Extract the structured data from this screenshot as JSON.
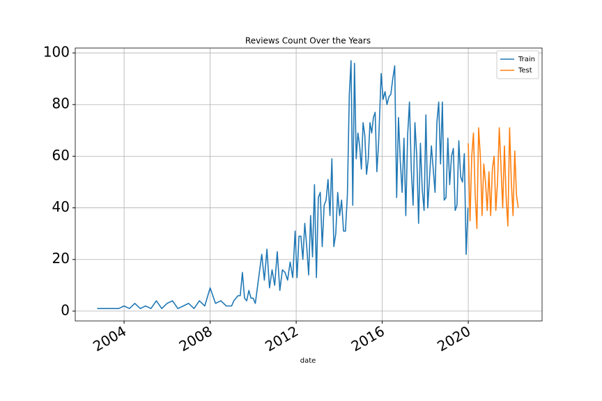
{
  "chart_data": {
    "type": "line",
    "title": "Reviews Count Over the Years",
    "x_label": "date",
    "xlim": [
      2001.73,
      2023.43
    ],
    "xticks": [
      2004,
      2008,
      2012,
      2016,
      2020
    ],
    "ylim": [
      -3.8,
      101.9
    ],
    "yticks": [
      0,
      20,
      40,
      60,
      80,
      100
    ],
    "grid": true,
    "legend": "upper right",
    "series": [
      {
        "name": "Train",
        "color": "#1f77b4",
        "x": [
          2002.75,
          2003,
          2003.25,
          2003.5,
          2003.75,
          2004,
          2004.25,
          2004.5,
          2004.75,
          2005,
          2005.25,
          2005.5,
          2005.75,
          2006,
          2006.25,
          2006.5,
          2006.75,
          2007,
          2007.25,
          2007.5,
          2007.75,
          2008,
          2008.25,
          2008.5,
          2008.75,
          2009,
          2009.1,
          2009.2,
          2009.3,
          2009.4,
          2009.5,
          2009.6,
          2009.7,
          2009.8,
          2009.9,
          2010,
          2010.1,
          2010.4,
          2010.52,
          2010.64,
          2010.76,
          2010.88,
          2011,
          2011.12,
          2011.24,
          2011.36,
          2011.48,
          2011.6,
          2011.72,
          2011.84,
          2011.95,
          2012.04,
          2012.13,
          2012.22,
          2012.31,
          2012.4,
          2012.49,
          2012.58,
          2012.67,
          2012.76,
          2012.85,
          2012.94,
          2013.03,
          2013.12,
          2013.21,
          2013.3,
          2013.39,
          2013.48,
          2013.57,
          2013.66,
          2013.75,
          2013.84,
          2013.93,
          2014.02,
          2014.11,
          2014.2,
          2014.29,
          2014.38,
          2014.47,
          2014.55,
          2014.63,
          2014.71,
          2014.79,
          2014.87,
          2014.95,
          2015.03,
          2015.11,
          2015.19,
          2015.27,
          2015.35,
          2015.43,
          2015.51,
          2015.59,
          2015.67,
          2015.75,
          2015.83,
          2015.95,
          2016.04,
          2016.13,
          2016.22,
          2016.31,
          2016.4,
          2016.49,
          2016.58,
          2016.67,
          2016.755,
          2016.84,
          2016.925,
          2017.01,
          2017.095,
          2017.18,
          2017.265,
          2017.35,
          2017.435,
          2017.52,
          2017.605,
          2017.69,
          2017.775,
          2017.86,
          2017.945,
          2018.03,
          2018.115,
          2018.2,
          2018.285,
          2018.37,
          2018.455,
          2018.54,
          2018.625,
          2018.71,
          2018.795,
          2018.88,
          2018.965,
          2019.05,
          2019.135,
          2019.22,
          2019.305,
          2019.39,
          2019.475,
          2019.56,
          2019.645,
          2019.73,
          2019.815,
          2019.9,
          2019.985
        ],
        "values": [
          1,
          1,
          1,
          1,
          1,
          2,
          1,
          3,
          1,
          2,
          1,
          4,
          1,
          3,
          4,
          1,
          2,
          3,
          1,
          4,
          2,
          9,
          3,
          4,
          2,
          2,
          4,
          5,
          6,
          6,
          15,
          5,
          4,
          8,
          5,
          5,
          3,
          22,
          12,
          24,
          9,
          16,
          10,
          23,
          8,
          16,
          15,
          12,
          19,
          13,
          31,
          13,
          29,
          29,
          20,
          34,
          25,
          14,
          37,
          21,
          49,
          13,
          44,
          46,
          25,
          41,
          43,
          51,
          37,
          59,
          25,
          30,
          46,
          37,
          43,
          31,
          31,
          45,
          84,
          97,
          41,
          96,
          59,
          69,
          64,
          55,
          73,
          68,
          53,
          59,
          73,
          69,
          75,
          77,
          54,
          65,
          92,
          82,
          85,
          80,
          83,
          84,
          90,
          95,
          44,
          75,
          58,
          46,
          67,
          37,
          68,
          81,
          55,
          41,
          73,
          60,
          34,
          65,
          47,
          39,
          76,
          40,
          52,
          64,
          55,
          46,
          73,
          81,
          57,
          81,
          43,
          44,
          67,
          49,
          60,
          63,
          39,
          41,
          66,
          52,
          50,
          61,
          22,
          40
        ]
      },
      {
        "name": "Test",
        "color": "#ff7f0e",
        "x": [
          2020,
          2020.08,
          2020.16,
          2020.24,
          2020.32,
          2020.4,
          2020.48,
          2020.56,
          2020.64,
          2020.72,
          2020.8,
          2020.88,
          2020.96,
          2021.04,
          2021.12,
          2021.2,
          2021.28,
          2021.36,
          2021.44,
          2021.52,
          2021.6,
          2021.68,
          2021.76,
          2021.84,
          2021.92,
          2022,
          2022.08,
          2022.16,
          2022.24,
          2022.32
        ],
        "values": [
          65,
          35,
          60,
          69,
          45,
          32,
          71,
          60,
          37,
          57,
          50,
          39,
          54,
          37,
          55,
          60,
          39,
          50,
          71,
          56,
          40,
          64,
          44,
          33,
          71,
          50,
          37,
          62,
          45,
          40
        ]
      }
    ]
  }
}
